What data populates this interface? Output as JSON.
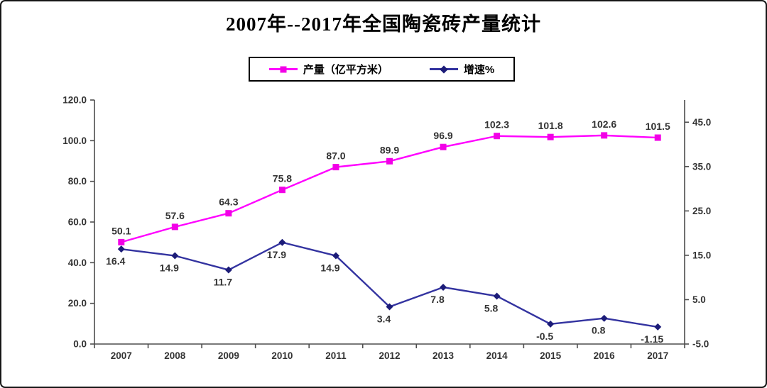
{
  "title": "2007年--2017年全国陶瓷砖产量统计",
  "legend": [
    {
      "label": "产量（亿平方米）",
      "color": "#FF00FF",
      "marker_color": "#F200E6",
      "marker": "square"
    },
    {
      "label": "增速%",
      "color": "#3333A0",
      "marker_color": "#1C1C78",
      "marker": "diamond"
    }
  ],
  "colors": {
    "axis": "#4D4D4D",
    "label_text": "#333333",
    "production_line": "#FF00FF",
    "growth_line": "#3333A0",
    "background": "#FFFFFF",
    "border": "#161616"
  },
  "chart_data": {
    "type": "line",
    "title": "2007年--2017年全国陶瓷砖产量统计",
    "categories": [
      "2007",
      "2008",
      "2009",
      "2010",
      "2011",
      "2012",
      "2013",
      "2014",
      "2015",
      "2016",
      "2017"
    ],
    "series": [
      {
        "name": "产量（亿平方米）",
        "axis": "left",
        "color": "#FF00FF",
        "marker_color": "#F200E6",
        "marker": "square",
        "label_position": "above",
        "values": [
          50.1,
          57.6,
          64.3,
          75.8,
          87.0,
          89.9,
          96.9,
          102.3,
          101.8,
          102.6,
          101.5
        ],
        "labels": [
          "50.1",
          "57.6",
          "64.3",
          "75.8",
          "87.0",
          "89.9",
          "96.9",
          "102.3",
          "101.8",
          "102.6",
          "101.5"
        ]
      },
      {
        "name": "增速%",
        "axis": "right",
        "color": "#3333A0",
        "marker_color": "#1C1C78",
        "marker": "diamond",
        "label_position": "below",
        "values": [
          16.4,
          14.9,
          11.7,
          17.9,
          14.9,
          3.4,
          7.8,
          5.8,
          -0.5,
          0.8,
          -1.15
        ],
        "labels": [
          "16.4",
          "14.9",
          "11.7",
          "17.9",
          "14.9",
          "3.4",
          "7.8",
          "5.8",
          "-0.5",
          "0.8",
          "-1.15"
        ]
      }
    ],
    "left_axis": {
      "min": 0,
      "max": 120,
      "step": 20,
      "tick_labels": [
        "0.0",
        "20.0",
        "40.0",
        "60.0",
        "80.0",
        "100.0",
        "120.0"
      ]
    },
    "right_axis": {
      "min": -5,
      "max": 50,
      "step": 10,
      "tick_labels": [
        "-5.0",
        "5.0",
        "15.0",
        "25.0",
        "35.0",
        "45.0"
      ]
    },
    "grid": false,
    "legend_position": "top-center"
  }
}
